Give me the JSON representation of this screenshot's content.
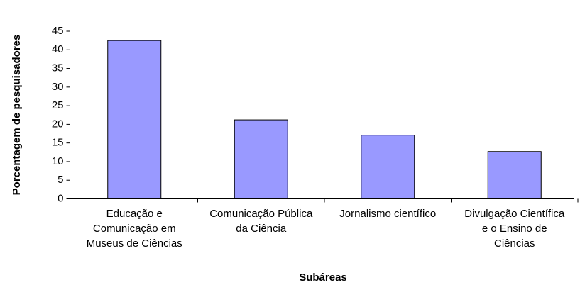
{
  "chart_data": {
    "type": "bar",
    "categories": [
      "Educação e\nComunicação em\nMuseus de Ciências",
      "Comunicação Pública\nda Ciência",
      "Jornalismo científico",
      "Divulgação Científica\ne o Ensino de\nCiências"
    ],
    "values": [
      42.5,
      21.2,
      17.1,
      12.7
    ],
    "color": "#9999ff",
    "x_label": "Subáreas",
    "y_label": "Porcentagem de pesquisadores",
    "ylim": [
      0,
      45
    ],
    "yticks": [
      0,
      5,
      10,
      15,
      20,
      25,
      30,
      35,
      40,
      45
    ],
    "grid": false
  }
}
